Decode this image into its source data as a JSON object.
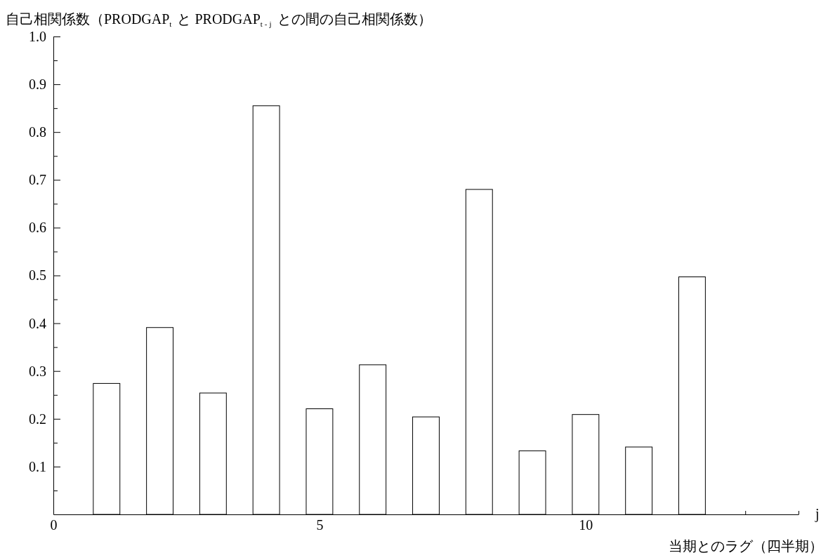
{
  "chart_data": {
    "type": "bar",
    "ylabel": "自己相関係数（PRODGAP$_{t}$ と PRODGAP$_{t-j}$ との間の自己相関係数）",
    "xlabel": "当期とのラグ（四半期）",
    "annotations": [
      "j"
    ],
    "x": [
      1,
      2,
      3,
      4,
      5,
      6,
      7,
      8,
      9,
      10,
      11,
      12
    ],
    "series": [
      {
        "color": "#ffffff",
        "values": [
          0.274,
          0.391,
          0.254,
          0.855,
          0.221,
          0.313,
          0.204,
          0.68,
          0.133,
          0.209,
          0.141,
          0.497
        ]
      }
    ],
    "xlim": [
      0,
      14
    ],
    "xticks": [
      0,
      {
        "value": 1,
        "label": null
      },
      {
        "value": 2,
        "label": null
      },
      {
        "value": 3,
        "label": null
      },
      {
        "value": 4,
        "label": null
      },
      5,
      {
        "value": 6,
        "label": null
      },
      {
        "value": 7,
        "label": null
      },
      {
        "value": 8,
        "label": null
      },
      {
        "value": 9,
        "label": null
      },
      10,
      {
        "value": 11,
        "label": null
      },
      {
        "value": 12,
        "label": null
      },
      {
        "value": 13,
        "label": null
      },
      {
        "value": 14,
        "label": null
      }
    ],
    "ylim": [
      0,
      1.0
    ],
    "yticks": [
      {
        "value": 0.05,
        "label": null
      },
      0.1,
      {
        "value": 0.15,
        "label": null
      },
      0.2,
      {
        "value": 0.25,
        "label": null
      },
      0.3,
      {
        "value": 0.35,
        "label": null
      },
      0.4,
      {
        "value": 0.45,
        "label": null
      },
      0.5,
      {
        "value": 0.55,
        "label": null
      },
      0.6,
      {
        "value": 0.65,
        "label": null
      },
      0.7,
      {
        "value": 0.75,
        "label": null
      },
      0.8,
      {
        "value": 0.85,
        "label": null
      },
      0.9,
      {
        "value": 0.95,
        "label": null
      },
      {
        "value": 1.0,
        "label": "1.0"
      }
    ],
    "grid": false
  }
}
